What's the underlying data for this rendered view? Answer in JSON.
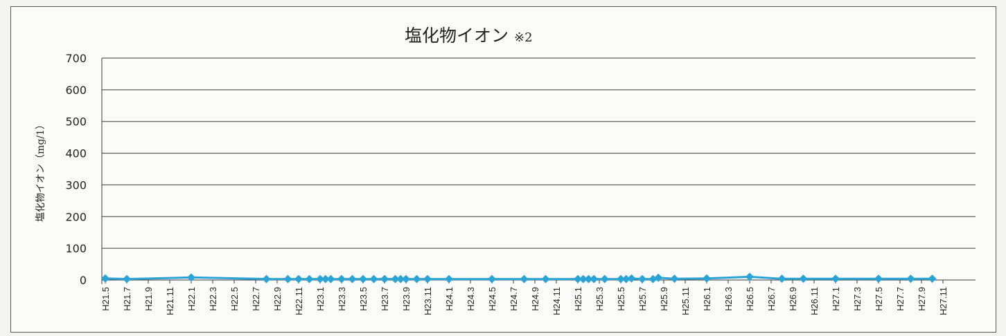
{
  "chart_data": {
    "type": "line",
    "title": "塩化物イオン",
    "title_note": "※2",
    "ylabel": "塩化物イオン（mg/1）",
    "xlabel": "",
    "ylim": [
      0,
      700
    ],
    "yticks": [
      0,
      100,
      200,
      300,
      400,
      500,
      600,
      700
    ],
    "grid": true,
    "legend": "none",
    "color": "#2aa3d6",
    "x_categories": [
      "H21.5",
      "H21.7",
      "H21.9",
      "H21.11",
      "H22.1",
      "H22.3",
      "H22.5",
      "H22.7",
      "H22.9",
      "H22.11",
      "H23.1",
      "H23.3",
      "H23.5",
      "H23.7",
      "H23.9",
      "H23.11",
      "H24.1",
      "H24.3",
      "H24.5",
      "H24.7",
      "H24.9",
      "H24.11",
      "H25.1",
      "H25.3",
      "H25.5",
      "H25.7",
      "H25.9",
      "H25.11",
      "H26.1",
      "H26.3",
      "H26.5",
      "H26.7",
      "H26.9",
      "H26.11",
      "H27.1",
      "H27.3",
      "H27.5",
      "H27.7",
      "H27.9",
      "H27.11"
    ],
    "series": [
      {
        "points": [
          {
            "x": "H21.5",
            "y": 5
          },
          {
            "x": "H21.7",
            "y": 3
          },
          {
            "x": "H22.1",
            "y": 8
          },
          {
            "x": "H22.8",
            "y": 3
          },
          {
            "x": "H22.10",
            "y": 3
          },
          {
            "x": "H22.11",
            "y": 3
          },
          {
            "x": "H22.12",
            "y": 3
          },
          {
            "x": "H23.1",
            "y": 3
          },
          {
            "x": "H23.1.5",
            "y": 3
          },
          {
            "x": "H23.2",
            "y": 3
          },
          {
            "x": "H23.3",
            "y": 3
          },
          {
            "x": "H23.4",
            "y": 3
          },
          {
            "x": "H23.5",
            "y": 3
          },
          {
            "x": "H23.6",
            "y": 3
          },
          {
            "x": "H23.7",
            "y": 3
          },
          {
            "x": "H23.8",
            "y": 3
          },
          {
            "x": "H23.8.5",
            "y": 3
          },
          {
            "x": "H23.9",
            "y": 3
          },
          {
            "x": "H23.10",
            "y": 3
          },
          {
            "x": "H23.11",
            "y": 3
          },
          {
            "x": "H24.1",
            "y": 3
          },
          {
            "x": "H24.5",
            "y": 3
          },
          {
            "x": "H24.8",
            "y": 3
          },
          {
            "x": "H24.10",
            "y": 3
          },
          {
            "x": "H25.1",
            "y": 3
          },
          {
            "x": "H25.1.5",
            "y": 3
          },
          {
            "x": "H25.2",
            "y": 3
          },
          {
            "x": "H25.2.5",
            "y": 3
          },
          {
            "x": "H25.3.5",
            "y": 3
          },
          {
            "x": "H25.5",
            "y": 3
          },
          {
            "x": "H25.5.5",
            "y": 3
          },
          {
            "x": "H25.6",
            "y": 5
          },
          {
            "x": "H25.7",
            "y": 3
          },
          {
            "x": "H25.8",
            "y": 3
          },
          {
            "x": "H25.8.5",
            "y": 7
          },
          {
            "x": "H25.10",
            "y": 4
          },
          {
            "x": "H26.1",
            "y": 5
          },
          {
            "x": "H26.5",
            "y": 10
          },
          {
            "x": "H26.8",
            "y": 4
          },
          {
            "x": "H26.10",
            "y": 4
          },
          {
            "x": "H27.1",
            "y": 4
          },
          {
            "x": "H27.5",
            "y": 4
          },
          {
            "x": "H27.8",
            "y": 4
          },
          {
            "x": "H27.10",
            "y": 4
          }
        ]
      }
    ]
  }
}
